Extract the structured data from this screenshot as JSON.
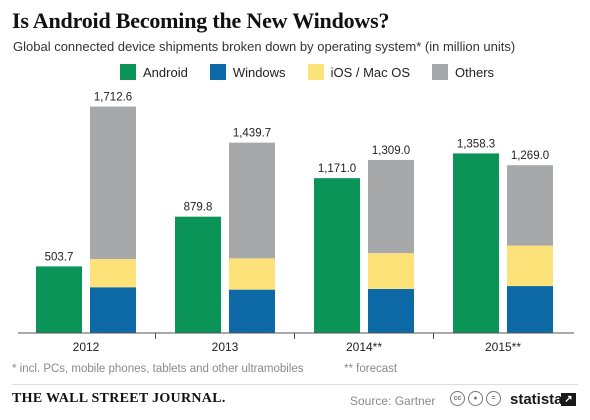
{
  "header": {
    "title": "Is Android Becoming the New Windows?",
    "subtitle": "Global connected device shipments broken down by operating system* (in million units)"
  },
  "legend": {
    "items": [
      {
        "label": "Android",
        "color": "#0a9457"
      },
      {
        "label": "Windows",
        "color": "#0e6aa6"
      },
      {
        "label": "iOS / Mac OS",
        "color": "#fde27a"
      },
      {
        "label": "Others",
        "color": "#a7a8aa"
      }
    ]
  },
  "chart_data": {
    "type": "bar",
    "categories": [
      "2012",
      "2013",
      "2014**",
      "2015**"
    ],
    "series": [
      {
        "name": "Android",
        "color": "#0a9457",
        "values": [
          503.7,
          879.8,
          1171.0,
          1358.3
        ]
      },
      {
        "name": "Windows",
        "color": "#0e6aa6",
        "values": [
          346,
          328,
          333,
          355
        ]
      },
      {
        "name": "iOS / Mac OS",
        "color": "#fde27a",
        "values": [
          213,
          236,
          271,
          306
        ]
      },
      {
        "name": "Others",
        "color": "#a7a8aa",
        "values": [
          1153.6,
          875.7,
          705,
          608
        ]
      }
    ],
    "stacked_group": [
      "Windows",
      "iOS / Mac OS",
      "Others"
    ],
    "data_labels": {
      "android": [
        "503.7",
        "879.8",
        "1,171.0",
        "1,358.3"
      ],
      "totals": [
        "1,712.6",
        "1,439.7",
        "1,309.0",
        "1,269.0"
      ]
    },
    "totals": [
      1712.6,
      1439.7,
      1309.0,
      1269.0
    ],
    "ylim": [
      0,
      1800
    ],
    "title": "Is Android Becoming the New Windows?",
    "xlabel": "",
    "ylabel": "",
    "grid": false,
    "legend_position": "top"
  },
  "footer": {
    "note_left": "* incl. PCs, mobile phones, tablets and other ultramobiles",
    "note_right": "** forecast",
    "publisher": "THE WALL STREET JOURNAL.",
    "source": "Source: Gartner",
    "brand": "statista",
    "cc_icons": [
      "cc-icon",
      "by-icon",
      "nd-icon"
    ]
  }
}
